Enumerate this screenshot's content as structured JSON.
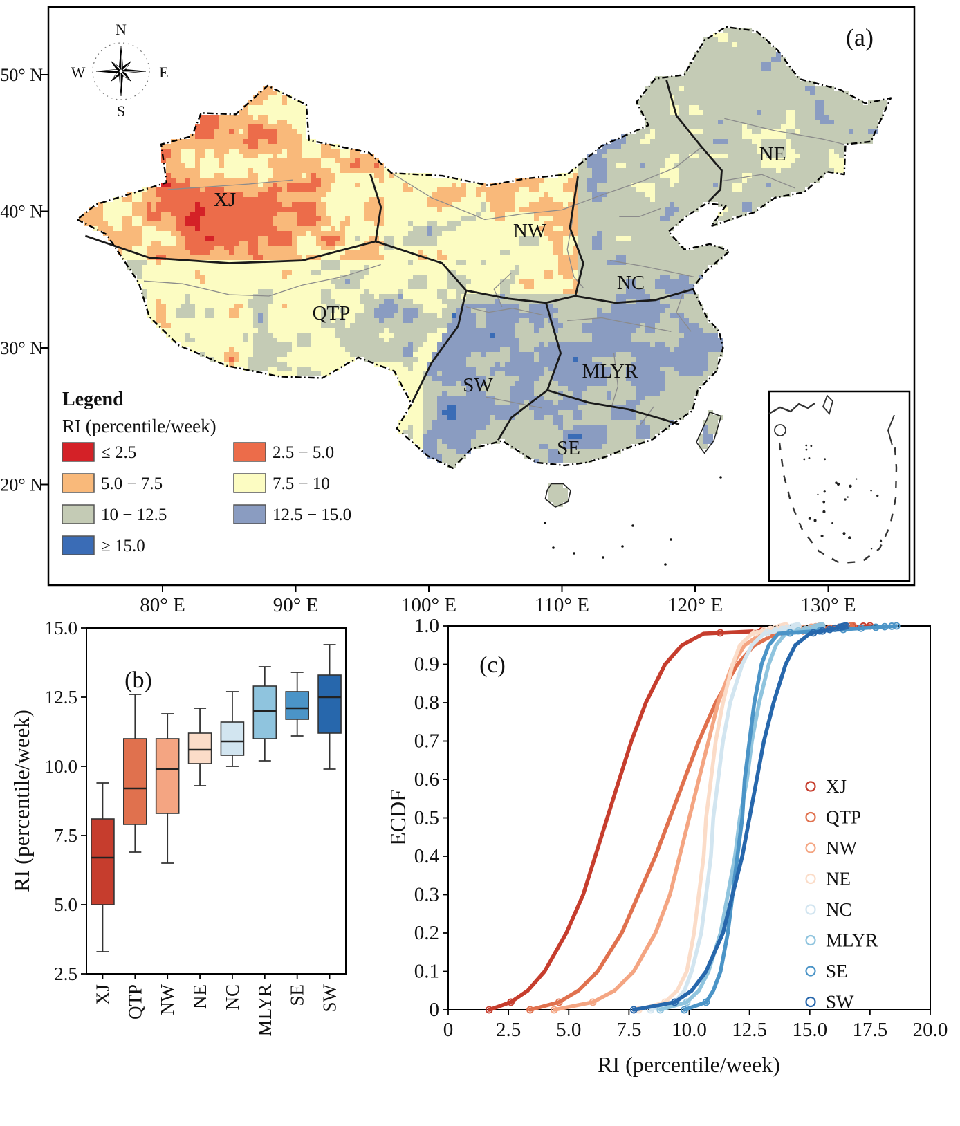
{
  "figure": {
    "panel_a": "(a)",
    "panel_b": "(b)",
    "panel_c": "(c)"
  },
  "map": {
    "compass": {
      "north": "N",
      "east": "E",
      "south": "S",
      "west": "W"
    },
    "legend": {
      "title": "Legend",
      "subtitle": "RI (percentile/week)",
      "items": [
        {
          "label": "≤ 2.5",
          "color": "#d42127"
        },
        {
          "label": "2.5 − 5.0",
          "color": "#ec6c4a"
        },
        {
          "label": "5.0 − 7.5",
          "color": "#f9b97a"
        },
        {
          "label": "7.5 − 10",
          "color": "#fcfcc2"
        },
        {
          "label": "10 − 12.5",
          "color": "#c4cbb5"
        },
        {
          "label": "12.5 − 15.0",
          "color": "#8a9cc1"
        },
        {
          "label": "≥ 15.0",
          "color": "#3a6cb6"
        }
      ]
    },
    "region_labels": [
      "XJ",
      "QTP",
      "NW",
      "NE",
      "NC",
      "MLYR",
      "SW",
      "SE"
    ],
    "x_tick_labels": [
      "80° E",
      "90° E",
      "100° E",
      "110° E",
      "120° E",
      "130° E"
    ],
    "y_tick_labels": [
      "50° N",
      "40° N",
      "30° N",
      "20° N"
    ]
  },
  "chart_data": [
    {
      "type": "heatmap",
      "variant": "raster-map",
      "title": "RI (percentile/week) across China",
      "categories": [
        "≤ 2.5",
        "2.5 − 5.0",
        "5.0 − 7.5",
        "7.5 − 10",
        "10 − 12.5",
        "12.5 − 15.0",
        "≥ 15.0"
      ],
      "category_colors": [
        "#d42127",
        "#ec6c4a",
        "#f9b97a",
        "#fcfcc2",
        "#c4cbb5",
        "#8a9cc1",
        "#3a6cb6"
      ],
      "regions": [
        {
          "name": "XJ",
          "dominant_category": "≤ 2.5 − 7.5"
        },
        {
          "name": "QTP",
          "dominant_category": "7.5 − 12.5"
        },
        {
          "name": "NW",
          "dominant_category": "5.0 − 10"
        },
        {
          "name": "NE",
          "dominant_category": "10 − 12.5"
        },
        {
          "name": "NC",
          "dominant_category": "10 − 12.5"
        },
        {
          "name": "MLYR",
          "dominant_category": "10 − 15.0"
        },
        {
          "name": "SW",
          "dominant_category": "12.5 − ≥ 15.0"
        },
        {
          "name": "SE",
          "dominant_category": "10 − 12.5"
        }
      ]
    },
    {
      "type": "box",
      "categories": [
        "XJ",
        "QTP",
        "NW",
        "NE",
        "NC",
        "MLYR",
        "SE",
        "SW"
      ],
      "ylabel": "RI (percentile/week)",
      "ylim": [
        2.5,
        15.0
      ],
      "y_ticks": [
        2.5,
        5.0,
        7.5,
        10.0,
        12.5,
        15.0
      ],
      "series": [
        {
          "name": "XJ",
          "color": "#c63d2d",
          "whisker_low": 3.3,
          "q1": 5.0,
          "median": 6.7,
          "q3": 8.1,
          "whisker_high": 9.4
        },
        {
          "name": "QTP",
          "color": "#e0714e",
          "whisker_low": 6.9,
          "q1": 7.9,
          "median": 9.2,
          "q3": 11.0,
          "whisker_high": 12.6
        },
        {
          "name": "NW",
          "color": "#f4a582",
          "whisker_low": 6.5,
          "q1": 8.3,
          "median": 9.9,
          "q3": 11.0,
          "whisker_high": 11.9
        },
        {
          "name": "NE",
          "color": "#fbdcc8",
          "whisker_low": 9.3,
          "q1": 10.1,
          "median": 10.6,
          "q3": 11.2,
          "whisker_high": 12.1
        },
        {
          "name": "NC",
          "color": "#d2e5f0",
          "whisker_low": 10.0,
          "q1": 10.4,
          "median": 10.9,
          "q3": 11.6,
          "whisker_high": 12.7
        },
        {
          "name": "MLYR",
          "color": "#8fc4de",
          "whisker_low": 10.2,
          "q1": 11.0,
          "median": 12.0,
          "q3": 12.9,
          "whisker_high": 13.6
        },
        {
          "name": "SE",
          "color": "#4b94c7",
          "whisker_low": 11.1,
          "q1": 11.7,
          "median": 12.1,
          "q3": 12.7,
          "whisker_high": 13.4
        },
        {
          "name": "SW",
          "color": "#2767ac",
          "whisker_low": 9.9,
          "q1": 11.2,
          "median": 12.5,
          "q3": 13.3,
          "whisker_high": 14.4
        }
      ]
    },
    {
      "type": "line",
      "variant": "ecdf",
      "xlabel": "RI (percentile/week)",
      "ylabel": "ECDF",
      "xlim": [
        0,
        20.0
      ],
      "ylim": [
        0,
        1.0
      ],
      "x_ticks": [
        0,
        2.5,
        5.0,
        7.5,
        10.0,
        12.5,
        15.0,
        17.5,
        20.0
      ],
      "y_ticks": [
        0,
        0.1,
        0.2,
        0.3,
        0.4,
        0.5,
        0.6,
        0.7,
        0.8,
        0.9,
        1.0
      ],
      "legend_position": "right",
      "quantile_p": [
        0,
        0.02,
        0.05,
        0.1,
        0.2,
        0.3,
        0.4,
        0.5,
        0.6,
        0.7,
        0.8,
        0.9,
        0.95,
        0.98,
        1.0
      ],
      "series": [
        {
          "name": "XJ",
          "color": "#c63d2d",
          "quantile_x": [
            1.7,
            2.6,
            3.3,
            4.0,
            4.9,
            5.6,
            6.1,
            6.6,
            7.1,
            7.6,
            8.2,
            9.0,
            9.7,
            10.6,
            17.5
          ]
        },
        {
          "name": "QTP",
          "color": "#e0714e",
          "quantile_x": [
            3.4,
            4.6,
            5.4,
            6.2,
            7.2,
            7.9,
            8.6,
            9.2,
            9.8,
            10.4,
            11.1,
            12.0,
            12.7,
            13.6,
            16.8
          ]
        },
        {
          "name": "NW",
          "color": "#f4a582",
          "quantile_x": [
            4.4,
            6.0,
            6.9,
            7.7,
            8.6,
            9.2,
            9.6,
            10.0,
            10.4,
            10.8,
            11.2,
            11.8,
            12.3,
            13.0,
            15.5
          ]
        },
        {
          "name": "NE",
          "color": "#fbdcc8",
          "quantile_x": [
            7.9,
            9.0,
            9.5,
            9.9,
            10.2,
            10.4,
            10.6,
            10.7,
            10.9,
            11.1,
            11.4,
            11.8,
            12.1,
            12.6,
            14.0
          ]
        },
        {
          "name": "NC",
          "color": "#d2e5f0",
          "quantile_x": [
            8.4,
            9.4,
            9.8,
            10.1,
            10.5,
            10.7,
            10.9,
            11.0,
            11.2,
            11.4,
            11.7,
            12.2,
            12.6,
            13.1,
            14.5
          ]
        },
        {
          "name": "MLYR",
          "color": "#8fc4de",
          "quantile_x": [
            8.8,
            9.9,
            10.4,
            10.8,
            11.3,
            11.6,
            11.9,
            12.1,
            12.4,
            12.6,
            12.9,
            13.3,
            13.6,
            14.0,
            15.5
          ]
        },
        {
          "name": "SE",
          "color": "#4b94c7",
          "quantile_x": [
            9.8,
            10.7,
            11.0,
            11.3,
            11.6,
            11.8,
            12.0,
            12.2,
            12.3,
            12.5,
            12.7,
            13.0,
            13.3,
            13.7,
            18.6
          ]
        },
        {
          "name": "SW",
          "color": "#2767ac",
          "quantile_x": [
            7.7,
            9.4,
            10.1,
            10.7,
            11.4,
            11.8,
            12.2,
            12.5,
            12.8,
            13.1,
            13.5,
            14.0,
            14.4,
            15.0,
            16.5
          ]
        }
      ]
    }
  ]
}
